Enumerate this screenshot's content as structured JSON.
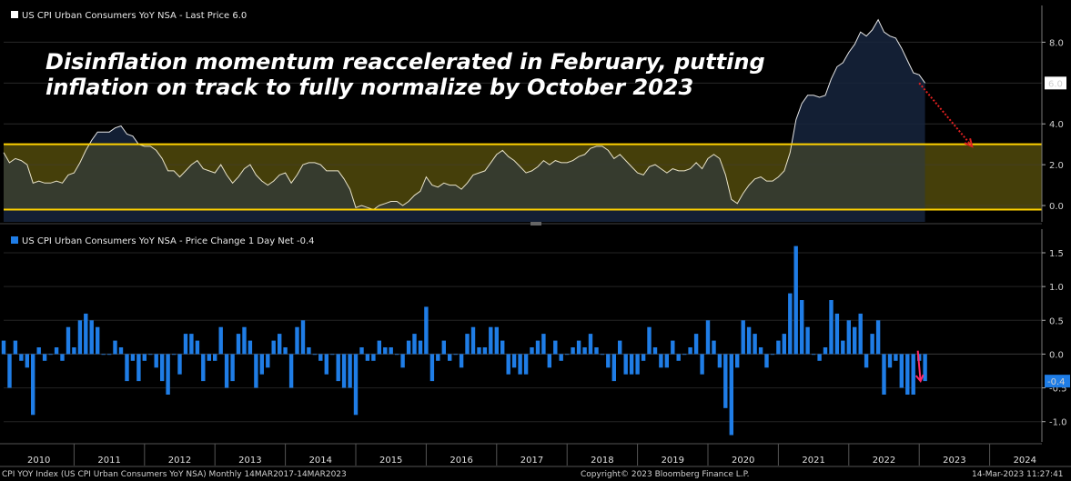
{
  "headline": [
    "Disinflation momentum reaccelerated in February, putting",
    "inflation on track to fully normalize by October 2023"
  ],
  "footer": {
    "left": "CPI YOY Index (US CPI Urban Consumers YoY NSA)  Monthly 14MAR2017-14MAR2023",
    "center": "Copyright© 2023 Bloomberg Finance L.P.",
    "right": "14-Mar-2023 11:27:41"
  },
  "colors": {
    "background": "#000000",
    "area_fill": "#16253d",
    "band_fill": "#2a2a0c",
    "band_line": "#ffd200",
    "bar": "#1f7de6",
    "arrow_top": "#e02020",
    "arrow_bottom": "#ff2a6a",
    "last_badge_top": "#ffffff",
    "last_badge_bottom": "#1f7de6"
  },
  "chart_data": [
    {
      "type": "area",
      "legend": "US CPI Urban Consumers YoY NSA - Last Price 6.0",
      "last_value_label": "6.0",
      "ylim": [
        -0.8,
        9.8
      ],
      "y_ticks": [
        0.0,
        2.0,
        4.0,
        6.0,
        8.0
      ],
      "y_tick_labels": [
        "0.0",
        "2.0",
        "4.0",
        "6.0",
        "8.0"
      ],
      "band": [
        -0.2,
        3.0
      ],
      "projection": {
        "from": [
          "2023-01",
          6.0
        ],
        "to": [
          "2023-10",
          2.9
        ]
      },
      "x_start": "2010-01",
      "values": [
        2.6,
        2.1,
        2.3,
        2.2,
        2.0,
        1.1,
        1.2,
        1.1,
        1.1,
        1.2,
        1.1,
        1.5,
        1.6,
        2.1,
        2.7,
        3.2,
        3.6,
        3.6,
        3.6,
        3.8,
        3.9,
        3.5,
        3.4,
        3.0,
        2.9,
        2.9,
        2.7,
        2.3,
        1.7,
        1.7,
        1.4,
        1.7,
        2.0,
        2.2,
        1.8,
        1.7,
        1.6,
        2.0,
        1.5,
        1.1,
        1.4,
        1.8,
        2.0,
        1.5,
        1.2,
        1.0,
        1.2,
        1.5,
        1.6,
        1.1,
        1.5,
        2.0,
        2.1,
        2.1,
        2.0,
        1.7,
        1.7,
        1.7,
        1.3,
        0.8,
        -0.1,
        0.0,
        -0.1,
        -0.2,
        0.0,
        0.1,
        0.2,
        0.2,
        0.0,
        0.2,
        0.5,
        0.7,
        1.4,
        1.0,
        0.9,
        1.1,
        1.0,
        1.0,
        0.8,
        1.1,
        1.5,
        1.6,
        1.7,
        2.1,
        2.5,
        2.7,
        2.4,
        2.2,
        1.9,
        1.6,
        1.7,
        1.9,
        2.2,
        2.0,
        2.2,
        2.1,
        2.1,
        2.2,
        2.4,
        2.5,
        2.8,
        2.9,
        2.9,
        2.7,
        2.3,
        2.5,
        2.2,
        1.9,
        1.6,
        1.5,
        1.9,
        2.0,
        1.8,
        1.6,
        1.8,
        1.7,
        1.7,
        1.8,
        2.1,
        1.8,
        2.3,
        2.5,
        2.3,
        1.5,
        0.3,
        0.1,
        0.6,
        1.0,
        1.3,
        1.4,
        1.2,
        1.2,
        1.4,
        1.7,
        2.6,
        4.2,
        5.0,
        5.4,
        5.4,
        5.3,
        5.4,
        6.2,
        6.8,
        7.0,
        7.5,
        7.9,
        8.5,
        8.3,
        8.6,
        9.1,
        8.5,
        8.3,
        8.2,
        7.7,
        7.1,
        6.5,
        6.4,
        6.0
      ],
      "x_labels": [
        "2010",
        "2011",
        "2012",
        "2013",
        "2014",
        "2015",
        "2016",
        "2017",
        "2018",
        "2019",
        "2020",
        "2021",
        "2022",
        "2023",
        "2024"
      ]
    },
    {
      "type": "bar",
      "legend": "US CPI Urban Consumers YoY NSA - Price Change 1 Day Net -0.4",
      "last_value_label": "-0.4",
      "ylim": [
        -1.3,
        1.85
      ],
      "y_ticks": [
        -1.0,
        -0.5,
        0.0,
        0.5,
        1.0,
        1.5
      ],
      "y_tick_labels": [
        "-1.0",
        "-0.5",
        "0.0",
        "0.5",
        "1.0",
        "1.5"
      ],
      "x_start": "2010-01",
      "values": [
        0.2,
        -0.5,
        0.2,
        -0.1,
        -0.2,
        -0.9,
        0.1,
        -0.1,
        0.0,
        0.1,
        -0.1,
        0.4,
        0.1,
        0.5,
        0.6,
        0.5,
        0.4,
        0.0,
        0.0,
        0.2,
        0.1,
        -0.4,
        -0.1,
        -0.4,
        -0.1,
        0.0,
        -0.2,
        -0.4,
        -0.6,
        0.0,
        -0.3,
        0.3,
        0.3,
        0.2,
        -0.4,
        -0.1,
        -0.1,
        0.4,
        -0.5,
        -0.4,
        0.3,
        0.4,
        0.2,
        -0.5,
        -0.3,
        -0.2,
        0.2,
        0.3,
        0.1,
        -0.5,
        0.4,
        0.5,
        0.1,
        0.0,
        -0.1,
        -0.3,
        0.0,
        -0.4,
        -0.5,
        -0.5,
        -0.9,
        0.1,
        -0.1,
        -0.1,
        0.2,
        0.1,
        0.1,
        0.0,
        -0.2,
        0.2,
        0.3,
        0.2,
        0.7,
        -0.4,
        -0.1,
        0.2,
        -0.1,
        0.0,
        -0.2,
        0.3,
        0.4,
        0.1,
        0.1,
        0.4,
        0.4,
        0.2,
        -0.3,
        -0.2,
        -0.3,
        -0.3,
        0.1,
        0.2,
        0.3,
        -0.2,
        0.2,
        -0.1,
        0.0,
        0.1,
        0.2,
        0.1,
        0.3,
        0.1,
        0.0,
        -0.2,
        -0.4,
        0.2,
        -0.3,
        -0.3,
        -0.3,
        -0.1,
        0.4,
        0.1,
        -0.2,
        -0.2,
        0.2,
        -0.1,
        0.0,
        0.1,
        0.3,
        -0.3,
        0.5,
        0.2,
        -0.2,
        -0.8,
        -1.2,
        -0.2,
        0.5,
        0.4,
        0.3,
        0.1,
        -0.2,
        0.0,
        0.2,
        0.3,
        0.9,
        1.6,
        0.8,
        0.4,
        0.0,
        -0.1,
        0.1,
        0.8,
        0.6,
        0.2,
        0.5,
        0.4,
        0.6,
        -0.2,
        0.3,
        0.5,
        -0.6,
        -0.2,
        -0.1,
        -0.5,
        -0.6,
        -0.6,
        -0.1,
        -0.4
      ]
    }
  ]
}
